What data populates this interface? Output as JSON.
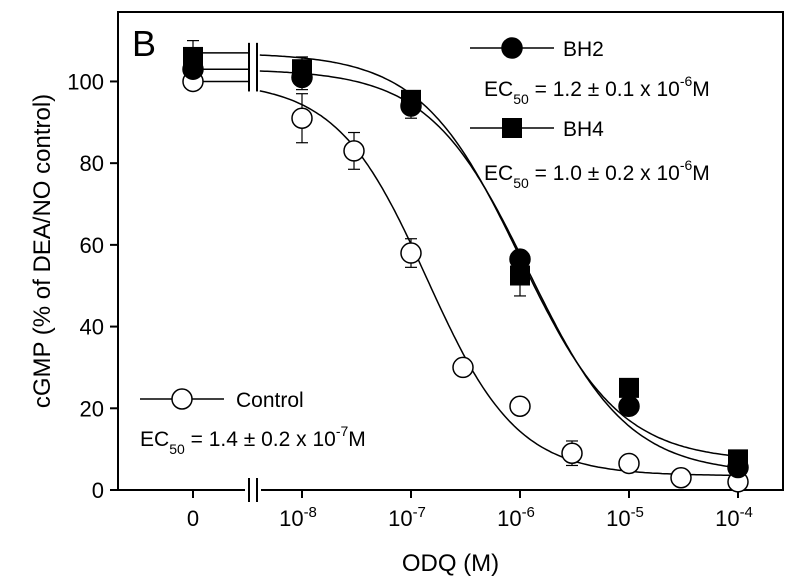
{
  "chart_data": {
    "type": "scatter",
    "panel_label": "B",
    "xlabel": "ODQ (M)",
    "ylabel": "cGMP (% of DEA/NO control)",
    "x_scale": "log",
    "x_ticks": [
      {
        "label": "0",
        "value": 0
      },
      {
        "label": "10",
        "exp": "-8",
        "value": 1e-08
      },
      {
        "label": "10",
        "exp": "-7",
        "value": 1e-07
      },
      {
        "label": "10",
        "exp": "-6",
        "value": 1e-06
      },
      {
        "label": "10",
        "exp": "-5",
        "value": 1e-05
      },
      {
        "label": "10",
        "exp": "-4",
        "value": 0.0001
      }
    ],
    "y_ticks": [
      0,
      20,
      40,
      60,
      80,
      100
    ],
    "ylim": [
      0,
      117
    ],
    "axis_break": true,
    "legend_placement": "top-right / bottom-left",
    "series": [
      {
        "name": "BH2",
        "marker": "filled-circle",
        "ec50_label": "EC",
        "ec50_sub": "50",
        "ec50_text": "= 1.2 ± 0.1 x 10",
        "ec50_exp": "-6",
        "ec50_unit": "M",
        "fit": {
          "top": 103,
          "bottom": 4,
          "ec50": 1.2e-06,
          "hill": 0.95
        },
        "points": [
          {
            "x": 0,
            "y": 103,
            "err": 0
          },
          {
            "x": 1e-08,
            "y": 101,
            "err": 3
          },
          {
            "x": 1e-07,
            "y": 94,
            "err": 3
          },
          {
            "x": 1e-06,
            "y": 56.5,
            "err": 0
          },
          {
            "x": 1e-05,
            "y": 20.5,
            "err": 0
          },
          {
            "x": 0.0001,
            "y": 5.5,
            "err": 0
          }
        ]
      },
      {
        "name": "BH4",
        "marker": "filled-square",
        "ec50_label": "EC",
        "ec50_sub": "50",
        "ec50_text": "= 1.0 ± 0.2 x 10",
        "ec50_exp": "-6",
        "ec50_unit": "M",
        "fit": {
          "top": 107,
          "bottom": 7,
          "ec50": 1e-06,
          "hill": 0.95
        },
        "points": [
          {
            "x": 0,
            "y": 106,
            "err": 4
          },
          {
            "x": 1e-08,
            "y": 103,
            "err": 3
          },
          {
            "x": 1e-07,
            "y": 95.5,
            "err": 0
          },
          {
            "x": 1e-06,
            "y": 52.5,
            "err": 5
          },
          {
            "x": 1e-05,
            "y": 25,
            "err": 0
          },
          {
            "x": 0.0001,
            "y": 7.5,
            "err": 0
          }
        ]
      },
      {
        "name": "Control",
        "marker": "open-circle",
        "ec50_label": "EC",
        "ec50_sub": "50",
        "ec50_text": "= 1.4 ± 0.2 x 10",
        "ec50_exp": "-7",
        "ec50_unit": "M",
        "fit": {
          "top": 100,
          "bottom": 3.5,
          "ec50": 1.4e-07,
          "hill": 1.05
        },
        "points": [
          {
            "x": 0,
            "y": 100,
            "err": 0
          },
          {
            "x": 1e-08,
            "y": 91,
            "err": 6
          },
          {
            "x": 3e-08,
            "y": 83,
            "err": 4.5
          },
          {
            "x": 1e-07,
            "y": 58,
            "err": 3.5
          },
          {
            "x": 3e-07,
            "y": 30,
            "err": 0
          },
          {
            "x": 1e-06,
            "y": 20.5,
            "err": 0
          },
          {
            "x": 3e-06,
            "y": 9,
            "err": 3
          },
          {
            "x": 1e-05,
            "y": 6.5,
            "err": 0
          },
          {
            "x": 3e-05,
            "y": 3,
            "err": 0
          },
          {
            "x": 0.0001,
            "y": 2,
            "err": 0
          }
        ]
      }
    ]
  }
}
